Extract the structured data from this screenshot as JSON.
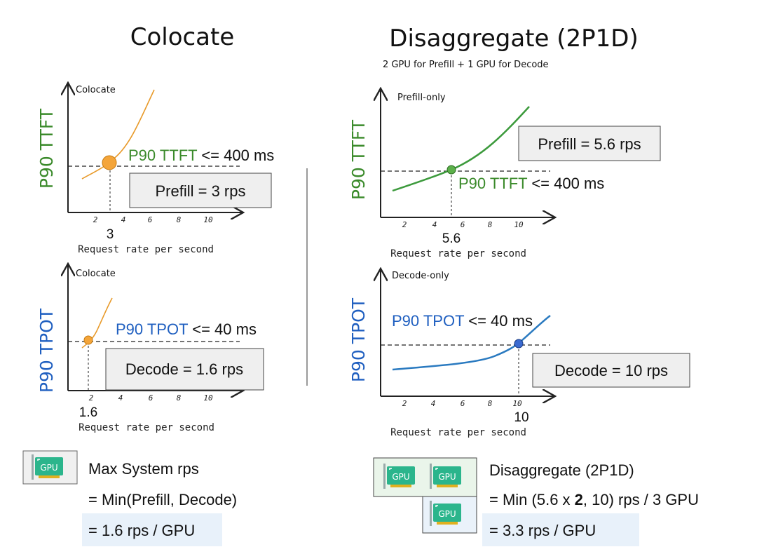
{
  "colors": {
    "green": "#3a8a2a",
    "blue": "#1f5fc0",
    "orange": "#f4a53a",
    "gpu": "#2bb58c"
  },
  "left": {
    "title": "Colocate",
    "ttft_chart": {
      "series_label": "Colocate",
      "ylabel": "P90 TTFT",
      "slo_prefix": "P90 TTFT",
      "slo_suffix": " <= 400 ms",
      "result": "Prefill = 3 rps",
      "marker": "3",
      "ticks": [
        "2",
        "4",
        "6",
        "8",
        "10"
      ],
      "xlabel": "Request rate per second"
    },
    "tpot_chart": {
      "series_label": "Colocate",
      "ylabel": "P90 TPOT",
      "slo_prefix": "P90 TPOT",
      "slo_suffix": " <= 40 ms",
      "result": "Decode = 1.6 rps",
      "marker": "1.6",
      "ticks": [
        "2",
        "4",
        "6",
        "8",
        "10"
      ],
      "xlabel": "Request rate per second"
    },
    "summary": {
      "gpu_label": "GPU",
      "line1": "Max System rps",
      "line2": "= Min(Prefill, Decode)",
      "line3": "= 1.6 rps / GPU"
    }
  },
  "right": {
    "title": "Disaggregate (2P1D)",
    "subtitle": "2 GPU for Prefill + 1 GPU for Decode",
    "ttft_chart": {
      "series_label": "Prefill-only",
      "ylabel": "P90 TTFT",
      "slo_prefix": "P90 TTFT",
      "slo_suffix": " <= 400 ms",
      "result": "Prefill = 5.6 rps",
      "marker": "5.6",
      "ticks": [
        "2",
        "4",
        "6",
        "8",
        "10"
      ],
      "xlabel": "Request rate per second"
    },
    "tpot_chart": {
      "series_label": "Decode-only",
      "ylabel": "P90 TPOT",
      "slo_prefix": "P90 TPOT",
      "slo_suffix": " <= 40 ms",
      "result": "Decode = 10 rps",
      "marker": "10",
      "ticks": [
        "2",
        "4",
        "6",
        "8",
        "10"
      ],
      "xlabel": "Request rate per second"
    },
    "summary": {
      "gpu_label": "GPU",
      "line1": "Disaggregate (2P1D)",
      "line2_a": "= Min (5.6 x ",
      "line2_bold": "2",
      "line2_b": ", 10) rps / 3 GPU",
      "line3": "= 3.3 rps / GPU"
    }
  }
}
